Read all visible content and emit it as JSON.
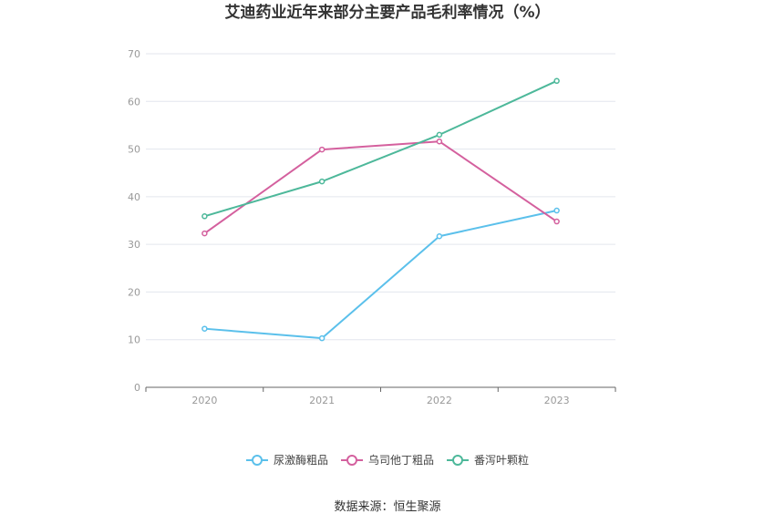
{
  "chart_data": {
    "type": "line",
    "title": "艾迪药业近年来部分主要产品毛利率情况（%）",
    "categories": [
      "2020",
      "2021",
      "2022",
      "2023"
    ],
    "ylim": [
      0,
      70
    ],
    "yticks": [
      0,
      10,
      20,
      30,
      40,
      50,
      60,
      70
    ],
    "grid": true,
    "legend_position": "bottom",
    "series": [
      {
        "name": "尿激酶粗品",
        "color": "#5bc0eb",
        "values": [
          12.3,
          10.3,
          31.7,
          37.1
        ]
      },
      {
        "name": "乌司他丁粗品",
        "color": "#d4609e",
        "values": [
          32.3,
          49.9,
          51.6,
          34.8
        ]
      },
      {
        "name": "番泻叶颗粒",
        "color": "#4db89a",
        "values": [
          35.9,
          43.2,
          53.0,
          64.3
        ]
      }
    ]
  },
  "source": "数据来源：恒生聚源"
}
